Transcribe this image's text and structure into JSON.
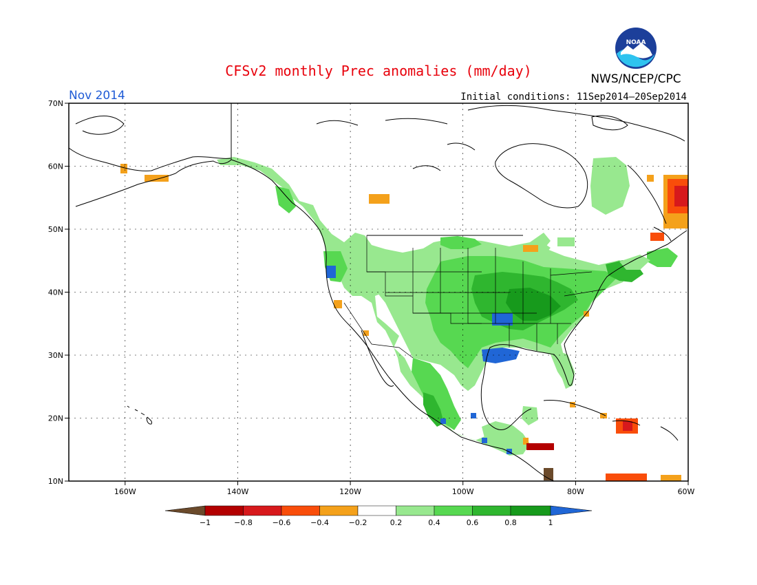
{
  "title": "CFSv2 monthly Prec anomalies (mm/day)",
  "month_label": "Nov 2014",
  "initial_conditions": "Initial conditions: 11Sep2014–20Sep2014",
  "agency": "NWS/NCEP/CPC",
  "logo_text": "NOAA",
  "colors": {
    "title": "#e8000b",
    "month": "#1f5bd6",
    "frame": "#000000"
  },
  "map": {
    "lon_range": [
      -170,
      -60
    ],
    "lat_range": [
      10,
      70
    ],
    "lat_ticks": [
      "70N",
      "60N",
      "50N",
      "40N",
      "30N",
      "20N",
      "10N"
    ],
    "lon_ticks": [
      "160W",
      "140W",
      "120W",
      "100W",
      "80W",
      "60W"
    ]
  },
  "colorbar": {
    "labels": [
      "−1",
      "−0.8",
      "−0.6",
      "−0.4",
      "−0.2",
      "0.2",
      "0.4",
      "0.6",
      "0.8",
      "1"
    ],
    "colors": [
      "#6b4a2b",
      "#b30000",
      "#d7191c",
      "#f94d0a",
      "#f4a11b",
      "#ffffff",
      "#98e88f",
      "#57d851",
      "#2fb62f",
      "#179a1c",
      "#2066d6"
    ]
  }
}
